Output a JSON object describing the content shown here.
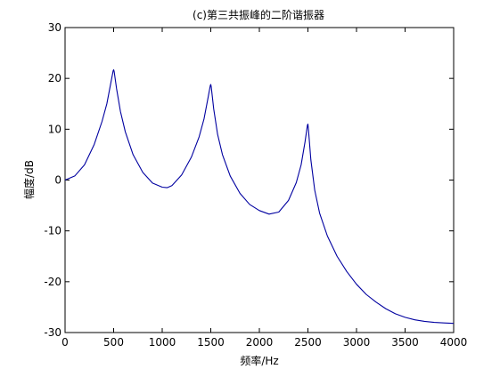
{
  "chart_data": {
    "type": "line",
    "title": "(c)第三共振峰的二阶谐振器",
    "xlabel": "频率/Hz",
    "ylabel": "幅度/dB",
    "xlim": [
      0,
      4000
    ],
    "ylim": [
      -30,
      30
    ],
    "xticks": [
      0,
      500,
      1000,
      1500,
      2000,
      2500,
      3000,
      3500,
      4000
    ],
    "yticks": [
      30,
      20,
      10,
      0,
      -10,
      -20,
      -30
    ],
    "grid": false,
    "legend": "none",
    "line_color": "#0000a0",
    "series": [
      {
        "x": [
          0,
          100,
          200,
          300,
          380,
          430,
          470,
          495,
          500,
          505,
          530,
          570,
          620,
          700,
          800,
          900,
          1000,
          1050,
          1100,
          1200,
          1300,
          1380,
          1430,
          1470,
          1495,
          1500,
          1505,
          1530,
          1570,
          1620,
          1700,
          1800,
          1900,
          2000,
          2100,
          2200,
          2300,
          2380,
          2430,
          2470,
          2495,
          2500,
          2505,
          2530,
          2570,
          2620,
          2700,
          2800,
          2900,
          3000,
          3100,
          3200,
          3300,
          3400,
          3500,
          3600,
          3700,
          3800,
          3900,
          4000
        ],
        "y": [
          0.0,
          0.8,
          3.0,
          7.0,
          11.5,
          15.0,
          19.0,
          21.5,
          21.7,
          21.4,
          18.0,
          13.5,
          9.5,
          5.0,
          1.5,
          -0.6,
          -1.4,
          -1.5,
          -1.1,
          1.0,
          4.5,
          8.5,
          12.0,
          16.0,
          18.6,
          18.8,
          18.3,
          14.0,
          9.0,
          5.0,
          0.8,
          -2.6,
          -4.8,
          -6.0,
          -6.7,
          -6.3,
          -4.0,
          -0.5,
          3.0,
          7.5,
          10.8,
          11.0,
          10.0,
          4.0,
          -2.0,
          -6.5,
          -11.0,
          -15.0,
          -18.0,
          -20.5,
          -22.5,
          -24.0,
          -25.3,
          -26.3,
          -27.0,
          -27.5,
          -27.8,
          -28.0,
          -28.1,
          -28.2
        ]
      }
    ]
  }
}
